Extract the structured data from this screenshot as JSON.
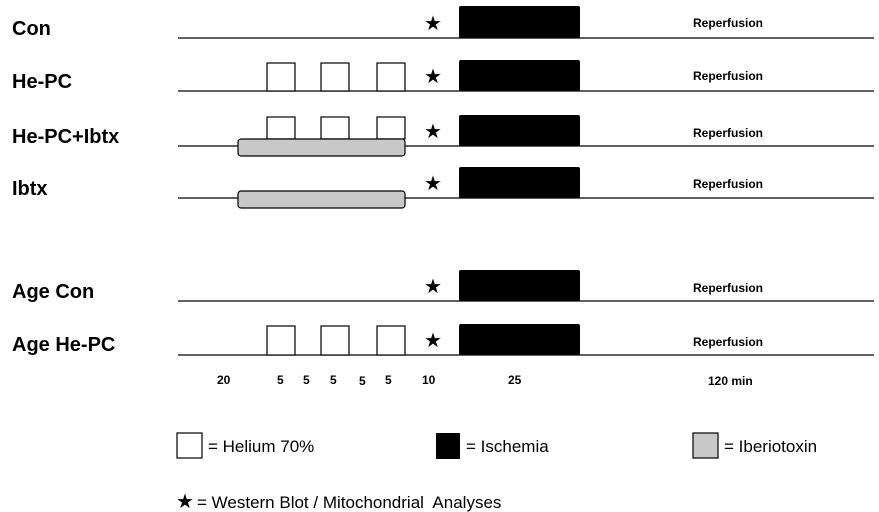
{
  "rows": [
    {
      "label": "Con",
      "helium": false,
      "iberiotoxin": false,
      "end_label": "Reperfusion"
    },
    {
      "label": "He-PC",
      "helium": true,
      "iberiotoxin": false,
      "end_label": "Reperfusion"
    },
    {
      "label": "He-PC+Ibtx",
      "helium": true,
      "iberiotoxin": true,
      "end_label": "Reperfusion"
    },
    {
      "label": "Ibtx",
      "helium": false,
      "iberiotoxin": true,
      "end_label": "Reperfusion"
    },
    {
      "label": "Age Con",
      "helium": false,
      "iberiotoxin": false,
      "end_label": "Reperfusion"
    },
    {
      "label": "Age He-PC",
      "helium": true,
      "iberiotoxin": false,
      "end_label": "Reperfusion"
    }
  ],
  "timeline_labels": [
    "20",
    "5",
    "5",
    "5",
    "5",
    "5",
    "10",
    "25",
    "120 min"
  ],
  "legend": {
    "helium": "= Helium 70%",
    "ischemia": "= Ischemia",
    "iberiotoxin": "= Iberiotoxin",
    "analysis": "= Western Blot / Mitochondrial  Analyses"
  },
  "symbols": {
    "analysis_marker": "★",
    "marker_icon": "star-icon"
  },
  "colors": {
    "ischemia": "#000000",
    "iberiotoxin": "#c8c8c8",
    "helium": "#ffffff"
  }
}
